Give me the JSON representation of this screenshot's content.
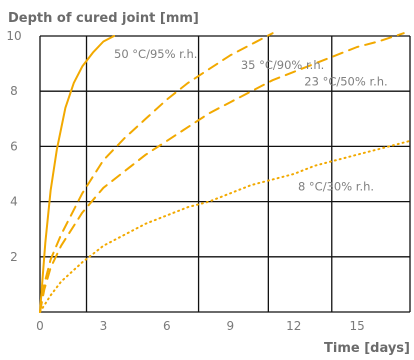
{
  "chart_data": {
    "type": "line",
    "title": "",
    "ylabel": "Depth of cured joint [mm]",
    "xlabel": "Time [days]",
    "xlim": [
      0,
      17.5
    ],
    "ylim": [
      0,
      10
    ],
    "xticks": [
      0,
      3,
      6,
      9,
      12,
      15
    ],
    "yticks": [
      2,
      4,
      6,
      8,
      10
    ],
    "grid": true,
    "series": [
      {
        "name": "50 °C/95% r.h.",
        "style": "solid",
        "color": "#f2a900",
        "x": [
          0,
          0.1,
          0.25,
          0.5,
          0.8,
          1.2,
          1.6,
          2.0,
          2.5,
          3.0,
          3.5
        ],
        "y": [
          0,
          1.0,
          2.5,
          4.4,
          5.9,
          7.4,
          8.3,
          8.9,
          9.4,
          9.8,
          10.0
        ]
      },
      {
        "name": "35 °C/90% r.h.",
        "style": "dashed",
        "color": "#f2a900",
        "x": [
          0,
          0.2,
          0.5,
          1,
          2,
          3,
          4,
          5,
          6,
          7,
          8,
          9,
          10,
          11
        ],
        "y": [
          0,
          1.0,
          1.9,
          2.8,
          4.3,
          5.5,
          6.3,
          7.0,
          7.7,
          8.3,
          8.8,
          9.3,
          9.7,
          10.1
        ]
      },
      {
        "name": "23 °C/50% r.h.",
        "style": "dashed",
        "color": "#f2a900",
        "x": [
          0,
          0.2,
          0.5,
          1,
          2,
          3,
          4,
          5,
          6,
          7,
          8,
          9,
          10,
          11,
          12,
          13,
          14,
          15,
          16,
          17.2
        ],
        "y": [
          0,
          0.8,
          1.6,
          2.4,
          3.6,
          4.5,
          5.1,
          5.7,
          6.2,
          6.7,
          7.2,
          7.6,
          8.0,
          8.4,
          8.7,
          9.0,
          9.3,
          9.6,
          9.8,
          10.1
        ]
      },
      {
        "name": "8 °C/30% r.h.",
        "style": "dotted",
        "color": "#f2a900",
        "x": [
          0,
          0.5,
          1,
          2,
          3,
          4,
          5,
          6,
          7,
          8,
          9,
          10,
          11,
          12,
          13,
          14,
          15,
          16,
          17.5
        ],
        "y": [
          0,
          0.6,
          1.1,
          1.8,
          2.4,
          2.8,
          3.2,
          3.5,
          3.8,
          4.0,
          4.3,
          4.6,
          4.8,
          5.0,
          5.3,
          5.5,
          5.7,
          5.9,
          6.2
        ]
      }
    ],
    "annotations": [
      {
        "text": "50 °C/95% r.h.",
        "x": 3.5,
        "y": 9.2
      },
      {
        "text": "35 °C/90% r.h.",
        "x": 9.5,
        "y": 8.8
      },
      {
        "text": "23 °C/50% r.h.",
        "x": 12.5,
        "y": 8.2
      },
      {
        "text": "8 °C/30% r.h.",
        "x": 12.2,
        "y": 4.4
      }
    ]
  }
}
